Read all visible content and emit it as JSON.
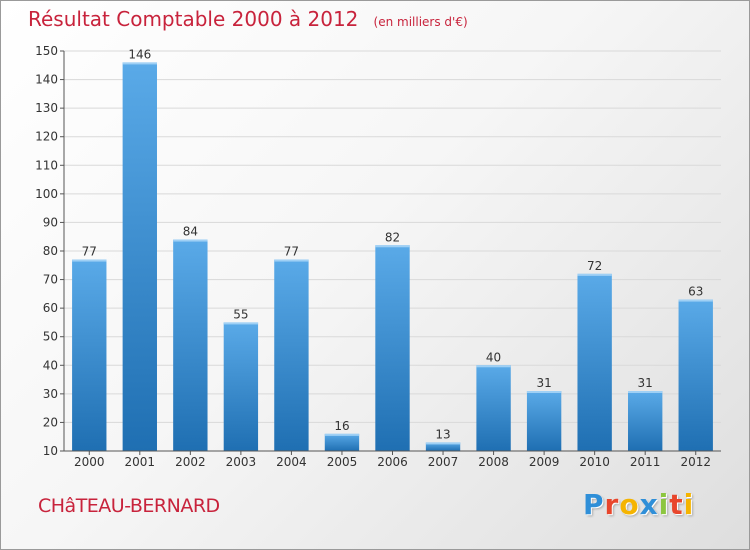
{
  "header": {
    "title": "Résultat Comptable 2000 à 2012",
    "subtitle": "(en milliers d'€)"
  },
  "footer": {
    "location": "CHâTEAU-BERNARD",
    "brand": {
      "letters": [
        "P",
        "r",
        "o",
        "x",
        "i",
        "t",
        "i"
      ],
      "colors": [
        "#2f8fd8",
        "#e8462c",
        "#f5b400",
        "#2f8fd8",
        "#8cc63f",
        "#e8462c",
        "#f5b400"
      ]
    }
  },
  "colors": {
    "title": "#c8233c",
    "bar_light": "#5aaae8",
    "bar_dark": "#1f6fb2",
    "grid": "#d9d9d9",
    "axis": "#555555"
  },
  "chart_data": {
    "type": "bar",
    "title": "Résultat Comptable 2000 à 2012",
    "subtitle": "(en milliers d'€)",
    "xlabel": "",
    "ylabel": "",
    "categories": [
      "2000",
      "2001",
      "2002",
      "2003",
      "2004",
      "2005",
      "2006",
      "2007",
      "2008",
      "2009",
      "2010",
      "2011",
      "2012"
    ],
    "values": [
      77,
      146,
      84,
      55,
      77,
      16,
      82,
      13,
      40,
      31,
      72,
      31,
      63
    ],
    "ylim": [
      10,
      150
    ],
    "yticks": [
      10,
      20,
      30,
      40,
      50,
      60,
      70,
      80,
      90,
      100,
      110,
      120,
      130,
      140,
      150
    ],
    "grid": true,
    "legend": "none"
  }
}
